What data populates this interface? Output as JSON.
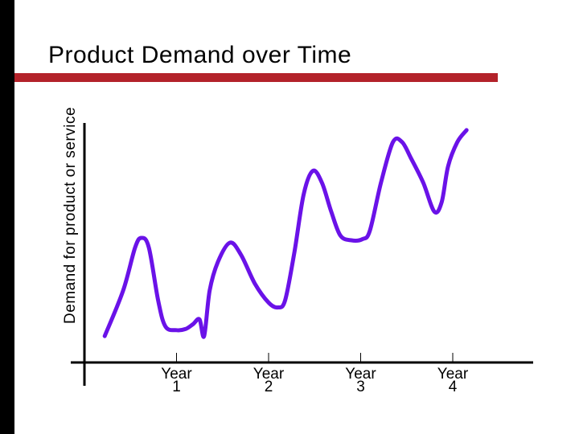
{
  "slide": {
    "title": "Product Demand over Time",
    "colors": {
      "accent_bar": "#b3222a",
      "left_bar": "#000000",
      "curve": "#6a12e8",
      "axis": "#000000"
    }
  },
  "chart_data": {
    "type": "line",
    "title": "Product Demand over Time",
    "ylabel": "Demand for product or service",
    "xlabel": "",
    "categories": [
      {
        "line1": "Year",
        "line2": "1"
      },
      {
        "line1": "Year",
        "line2": "2"
      },
      {
        "line1": "Year",
        "line2": "3"
      },
      {
        "line1": "Year",
        "line2": "4"
      }
    ],
    "xlim": [
      0,
      4.5
    ],
    "ylim": [
      0,
      100
    ],
    "y_ticks_shown": false,
    "grid": false,
    "series": [
      {
        "values": [
          [
            0.22,
            11
          ],
          [
            0.42,
            30
          ],
          [
            0.55,
            48
          ],
          [
            0.62,
            52
          ],
          [
            0.7,
            48
          ],
          [
            0.8,
            26
          ],
          [
            0.88,
            15
          ],
          [
            1.0,
            13.5
          ],
          [
            1.1,
            14
          ],
          [
            1.18,
            16
          ],
          [
            1.25,
            18
          ],
          [
            1.3,
            11
          ],
          [
            1.36,
            30
          ],
          [
            1.45,
            42
          ],
          [
            1.58,
            50
          ],
          [
            1.7,
            45
          ],
          [
            1.85,
            33
          ],
          [
            2.0,
            25
          ],
          [
            2.1,
            23
          ],
          [
            2.18,
            26
          ],
          [
            2.28,
            46
          ],
          [
            2.38,
            70
          ],
          [
            2.48,
            80
          ],
          [
            2.58,
            75
          ],
          [
            2.68,
            63
          ],
          [
            2.78,
            53
          ],
          [
            2.9,
            51
          ],
          [
            3.02,
            51.5
          ],
          [
            3.1,
            55
          ],
          [
            3.22,
            75
          ],
          [
            3.35,
            92
          ],
          [
            3.45,
            92
          ],
          [
            3.55,
            85
          ],
          [
            3.68,
            75
          ],
          [
            3.8,
            63
          ],
          [
            3.88,
            67
          ],
          [
            3.95,
            82
          ],
          [
            4.05,
            92
          ],
          [
            4.15,
            97
          ]
        ]
      }
    ]
  }
}
